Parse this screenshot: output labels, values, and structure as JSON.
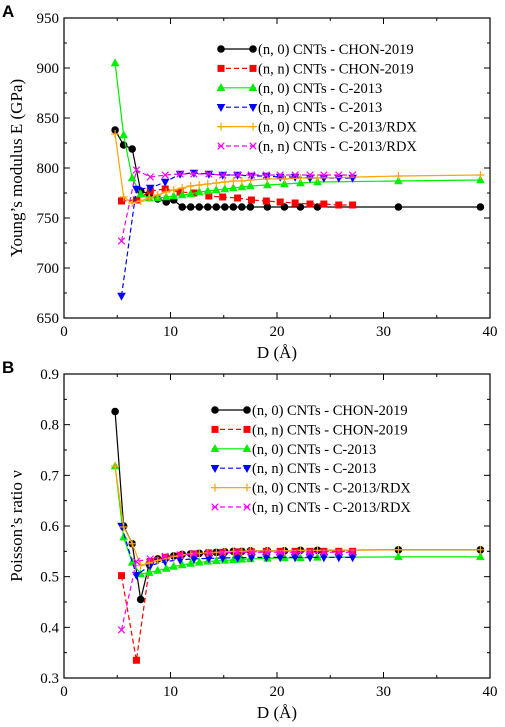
{
  "chart_data": [
    {
      "type": "line",
      "panel_label": "A",
      "xlabel": "D (Å)",
      "ylabel": "Young’s modulus E (GPa)",
      "xlim": [
        0,
        40
      ],
      "ylim": [
        650,
        950
      ],
      "xticks": [
        0,
        10,
        20,
        30,
        40
      ],
      "yticks": [
        650,
        700,
        750,
        800,
        850,
        900,
        950
      ],
      "legend_position": "top-right",
      "series": [
        {
          "name": "(n, 0) CNTs - CHON-2019",
          "color": "#000000",
          "marker": "circle",
          "line": "solid",
          "x": [
            4.8,
            5.6,
            6.4,
            7.2,
            8.0,
            8.8,
            9.6,
            10.3,
            11.1,
            11.9,
            12.7,
            13.5,
            14.3,
            15.1,
            15.9,
            16.7,
            17.5,
            19.1,
            20.7,
            22.2,
            23.8,
            31.4,
            39.1
          ],
          "y": [
            838,
            823,
            819,
            777,
            774,
            769,
            766,
            768,
            761,
            761,
            761,
            761,
            761,
            761,
            761,
            761,
            761,
            761,
            761,
            761,
            761,
            761,
            761
          ]
        },
        {
          "name": "(n, n) CNTs - CHON-2019",
          "color": "#ff0000",
          "marker": "square",
          "line": "dashed",
          "x": [
            5.4,
            6.8,
            8.1,
            9.5,
            10.9,
            12.2,
            13.6,
            14.9,
            16.3,
            17.6,
            19.0,
            20.3,
            21.7,
            23.1,
            24.4,
            25.8,
            27.1
          ],
          "y": [
            767,
            768,
            777,
            779,
            776,
            775,
            772,
            771,
            770,
            768,
            767,
            766,
            765,
            764,
            764,
            763,
            763
          ]
        },
        {
          "name": "(n, 0) CNTs - C-2013",
          "color": "#00ee00",
          "marker": "triangle-up",
          "line": "solid",
          "x": [
            4.8,
            5.6,
            6.4,
            7.2,
            8.0,
            8.8,
            9.6,
            10.3,
            11.1,
            11.9,
            12.7,
            13.5,
            14.3,
            15.1,
            15.9,
            16.7,
            17.5,
            19.1,
            20.7,
            22.2,
            23.8,
            31.4,
            39.1
          ],
          "y": [
            905,
            833,
            790,
            774,
            770,
            770,
            771,
            772,
            773,
            774,
            776,
            777,
            778,
            779,
            780,
            781,
            782,
            783,
            784,
            785,
            786,
            787,
            788
          ]
        },
        {
          "name": "(n, n) CNTs - C-2013",
          "color": "#0000ff",
          "marker": "triangle-down",
          "line": "dashed",
          "x": [
            5.4,
            6.8,
            8.1,
            9.5,
            10.9,
            12.2,
            13.6,
            14.9,
            16.3,
            17.6,
            19.0,
            20.3,
            21.7,
            23.1,
            24.4,
            25.8,
            27.1
          ],
          "y": [
            672,
            779,
            780,
            786,
            794,
            795,
            794,
            793,
            793,
            792,
            792,
            791,
            791,
            790,
            790,
            790,
            790
          ]
        },
        {
          "name": "(n, 0) CNTs - C-2013/RDX",
          "color": "#ffa500",
          "marker": "plus",
          "line": "solid",
          "x": [
            4.8,
            5.6,
            6.4,
            7.2,
            8.0,
            8.8,
            9.6,
            10.3,
            11.1,
            11.9,
            12.7,
            13.5,
            14.3,
            15.1,
            15.9,
            16.7,
            17.5,
            19.1,
            20.7,
            22.2,
            23.8,
            31.4,
            39.1
          ],
          "y": [
            834,
            771,
            765,
            767,
            770,
            773,
            776,
            778,
            780,
            782,
            783,
            784,
            785,
            786,
            787,
            787,
            788,
            789,
            789,
            790,
            790,
            792,
            793
          ]
        },
        {
          "name": "(n, n) CNTs - C-2013/RDX",
          "color": "#ff00ff",
          "marker": "x",
          "line": "dashed",
          "x": [
            5.4,
            6.8,
            8.1,
            9.5,
            10.9,
            12.2,
            13.6,
            14.9,
            16.3,
            17.6,
            19.0,
            20.3,
            21.7,
            23.1,
            24.4,
            25.8,
            27.1
          ],
          "y": [
            727,
            798,
            791,
            793,
            794,
            794,
            794,
            793,
            793,
            793,
            793,
            793,
            793,
            793,
            793,
            793,
            793
          ]
        }
      ]
    },
    {
      "type": "line",
      "panel_label": "B",
      "xlabel": "D (Å)",
      "ylabel": "Poisson’s ratio ν",
      "xlim": [
        0,
        40
      ],
      "ylim": [
        0.3,
        0.9
      ],
      "xticks": [
        0,
        10,
        20,
        30,
        40
      ],
      "yticks": [
        0.3,
        0.4,
        0.5,
        0.6,
        0.7,
        0.8,
        0.9
      ],
      "legend_position": "top-right",
      "series": [
        {
          "name": "(n, 0) CNTs - CHON-2019",
          "color": "#000000",
          "marker": "circle",
          "line": "solid",
          "x": [
            4.8,
            5.6,
            6.4,
            7.2,
            8.0,
            8.8,
            9.6,
            10.3,
            11.1,
            11.9,
            12.7,
            13.5,
            14.3,
            15.1,
            15.9,
            16.7,
            17.5,
            19.1,
            20.7,
            22.2,
            23.8,
            31.4,
            39.1
          ],
          "y": [
            0.826,
            0.6,
            0.565,
            0.455,
            0.525,
            0.535,
            0.538,
            0.541,
            0.544,
            0.545,
            0.546,
            0.547,
            0.548,
            0.549,
            0.55,
            0.55,
            0.551,
            0.551,
            0.551,
            0.552,
            0.552,
            0.553,
            0.553
          ]
        },
        {
          "name": "(n, n) CNTs - CHON-2019",
          "color": "#ff0000",
          "marker": "square",
          "line": "dashed",
          "x": [
            5.4,
            6.8,
            8.1,
            9.5,
            10.9,
            12.2,
            13.6,
            14.9,
            16.3,
            17.6,
            19.0,
            20.3,
            21.7,
            23.1,
            24.4,
            25.8,
            27.1
          ],
          "y": [
            0.502,
            0.335,
            0.53,
            0.538,
            0.542,
            0.545,
            0.547,
            0.548,
            0.549,
            0.549,
            0.55,
            0.55,
            0.55,
            0.55,
            0.55,
            0.55,
            0.55
          ]
        },
        {
          "name": "(n, 0) CNTs - C-2013",
          "color": "#00ee00",
          "marker": "triangle-up",
          "line": "solid",
          "x": [
            4.8,
            5.6,
            6.4,
            7.2,
            8.0,
            8.8,
            9.6,
            10.3,
            11.1,
            11.9,
            12.7,
            13.5,
            14.3,
            15.1,
            15.9,
            16.7,
            17.5,
            19.1,
            20.7,
            22.2,
            23.8,
            31.4,
            39.1
          ],
          "y": [
            0.718,
            0.578,
            0.528,
            0.505,
            0.508,
            0.512,
            0.516,
            0.52,
            0.523,
            0.526,
            0.528,
            0.53,
            0.531,
            0.532,
            0.533,
            0.534,
            0.535,
            0.536,
            0.537,
            0.537,
            0.538,
            0.539,
            0.539
          ]
        },
        {
          "name": "(n, n) CNTs - C-2013",
          "color": "#0000ff",
          "marker": "triangle-down",
          "line": "dashed",
          "x": [
            5.4,
            6.8,
            8.1,
            9.5,
            10.9,
            12.2,
            13.6,
            14.9,
            16.3,
            17.6,
            19.0,
            20.3,
            21.7,
            23.1,
            24.4,
            25.8,
            27.1
          ],
          "y": [
            0.6,
            0.503,
            0.522,
            0.53,
            0.533,
            0.535,
            0.536,
            0.537,
            0.537,
            0.538,
            0.538,
            0.538,
            0.538,
            0.538,
            0.538,
            0.538,
            0.538
          ]
        },
        {
          "name": "(n, 0) CNTs - C-2013/RDX",
          "color": "#ffa500",
          "marker": "plus",
          "line": "solid",
          "x": [
            4.8,
            5.6,
            6.4,
            7.2,
            8.0,
            8.8,
            9.6,
            10.3,
            11.1,
            11.9,
            12.7,
            13.5,
            14.3,
            15.1,
            15.9,
            16.7,
            17.5,
            19.1,
            20.7,
            22.2,
            23.8,
            31.4,
            39.1
          ],
          "y": [
            0.718,
            0.598,
            0.565,
            0.522,
            0.527,
            0.532,
            0.536,
            0.54,
            0.543,
            0.545,
            0.546,
            0.547,
            0.548,
            0.549,
            0.55,
            0.55,
            0.551,
            0.551,
            0.551,
            0.552,
            0.552,
            0.553,
            0.553
          ]
        },
        {
          "name": "(n, n) CNTs - C-2013/RDX",
          "color": "#ff00ff",
          "marker": "x",
          "line": "dashed",
          "x": [
            5.4,
            6.8,
            8.1,
            9.5,
            10.9,
            12.2,
            13.6,
            14.9,
            16.3,
            17.6,
            19.0,
            20.3,
            21.7,
            23.1,
            24.4,
            25.8,
            27.1
          ],
          "y": [
            0.395,
            0.53,
            0.535,
            0.54,
            0.543,
            0.545,
            0.546,
            0.547,
            0.548,
            0.548,
            0.548,
            0.548,
            0.548,
            0.548,
            0.548,
            0.548,
            0.548
          ]
        }
      ]
    }
  ]
}
